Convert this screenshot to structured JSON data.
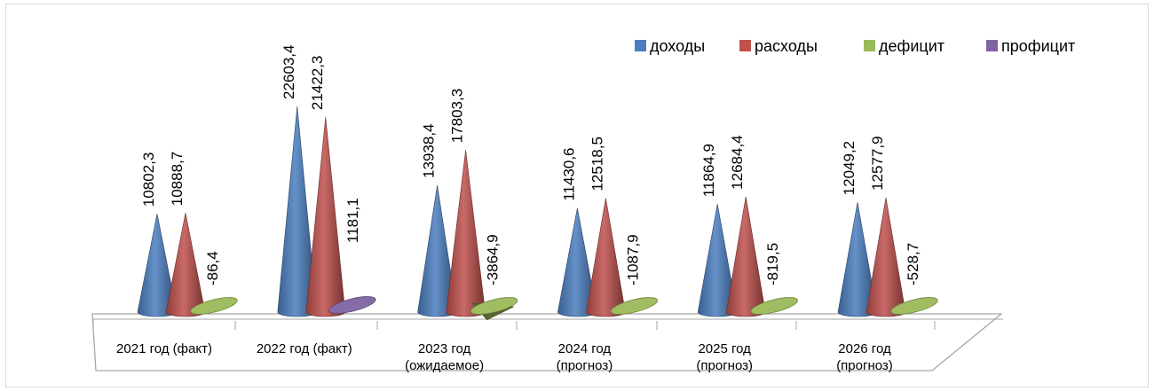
{
  "chart_data": {
    "type": "bar",
    "style": "3d-cone",
    "categories": [
      [
        "2021 год (факт)"
      ],
      [
        "2022 год (факт)"
      ],
      [
        "2023 год",
        "(ожидаемое)"
      ],
      [
        "2024 год",
        "(прогноз)"
      ],
      [
        "2025 год",
        "(прогноз)"
      ],
      [
        "2026 год",
        "(прогноз)"
      ]
    ],
    "series": [
      {
        "name": "доходы",
        "color": "#4a7ebf",
        "values": [
          10802.3,
          22603.4,
          13938.4,
          11430.6,
          11864.9,
          12049.2
        ],
        "labels": [
          "10802,3",
          "22603,4",
          "13938,4",
          "11430,6",
          "11864,9",
          "12049,2"
        ]
      },
      {
        "name": "расходы",
        "color": "#c0504d",
        "values": [
          10888.7,
          21422.3,
          17803.3,
          12518.5,
          12684.4,
          12577.9
        ],
        "labels": [
          "10888,7",
          "21422,3",
          "17803,3",
          "12518,5",
          "12684,4",
          "12577,9"
        ]
      },
      {
        "name": "дефицит",
        "color": "#9bbb59",
        "values": [
          -86.4,
          null,
          -3864.9,
          -1087.9,
          -819.5,
          -528.7
        ],
        "labels": [
          "-86,4",
          null,
          "-3864,9",
          "-1087,9",
          "-819,5",
          "-528,7"
        ]
      },
      {
        "name": "профицит",
        "color": "#8064a2",
        "values": [
          null,
          1181.1,
          null,
          null,
          null,
          null
        ],
        "labels": [
          null,
          "1181,1",
          null,
          null,
          null,
          null
        ]
      }
    ],
    "legend_position": "top-right",
    "grid": false
  }
}
